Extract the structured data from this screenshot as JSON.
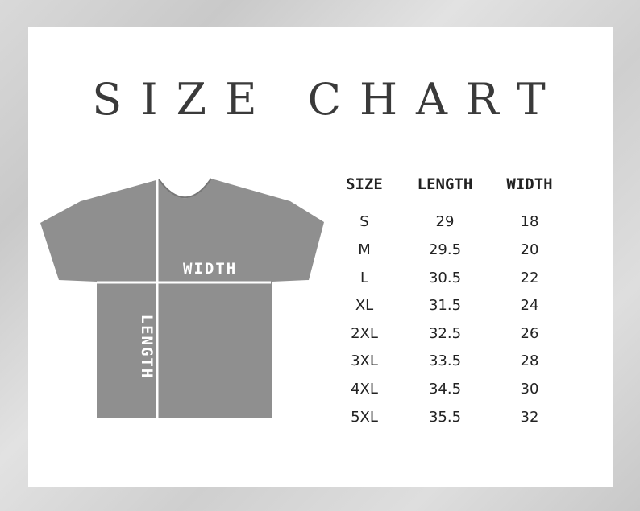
{
  "title": "SIZE CHART",
  "diagram": {
    "width_label": "WIDTH",
    "length_label": "LENGTH",
    "shirt_color": "#8f8f8f"
  },
  "table": {
    "headers": [
      "SIZE",
      "LENGTH",
      "WIDTH"
    ],
    "rows": [
      [
        "S",
        "29",
        "18"
      ],
      [
        "M",
        "29.5",
        "20"
      ],
      [
        "L",
        "30.5",
        "22"
      ],
      [
        "XL",
        "31.5",
        "24"
      ],
      [
        "2XL",
        "32.5",
        "26"
      ],
      [
        "3XL",
        "33.5",
        "28"
      ],
      [
        "4XL",
        "34.5",
        "30"
      ],
      [
        "5XL",
        "35.5",
        "32"
      ]
    ]
  }
}
